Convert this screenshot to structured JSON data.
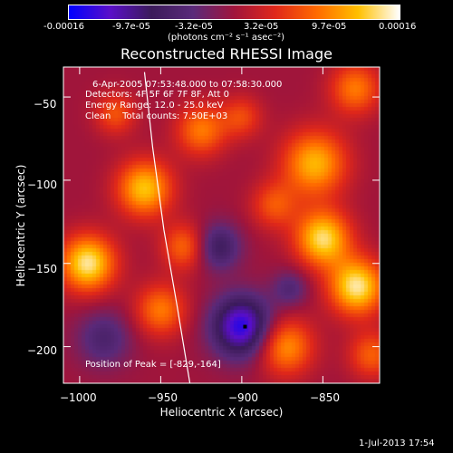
{
  "colorbar": {
    "ticks": [
      "-0.00016",
      "-9.7e-05",
      "-3.2e-05",
      "3.2e-05",
      "9.7e-05",
      "0.00016"
    ],
    "unit_label": "(photons cm⁻² s⁻¹ asec⁻²)",
    "gradient": [
      "#0000ff",
      "#5a0fc8",
      "#3b1b5a",
      "#5a2a7a",
      "#a0153c",
      "#e0281a",
      "#ff6a00",
      "#ffc000",
      "#ffffff"
    ]
  },
  "chart_data": {
    "type": "heatmap",
    "title": "Reconstructed RHESSI Image",
    "xlabel": "Heliocentric X (arcsec)",
    "ylabel": "Heliocentric Y (arcsec)",
    "xlim": [
      -1010,
      -815
    ],
    "ylim": [
      -222,
      -32
    ],
    "xticks": [
      -1000,
      -950,
      -900,
      -850
    ],
    "yticks": [
      -50,
      -100,
      -150,
      -200
    ],
    "xtick_labels": [
      "−1000",
      "−950",
      "−900",
      "−850"
    ],
    "ytick_labels": [
      "−50",
      "−100",
      "−150",
      "−200"
    ],
    "info_lines": [
      "6-Apr-2005 07:53:48.000 to 07:58:30.000",
      "Detectors: 4F 5F 6F 7F 8F, Att 0",
      "Energy Range: 12.0 - 25.0 keV",
      "Clean    Total counts: 7.50E+03"
    ],
    "peak_label": "Position of Peak = [-829,-164]",
    "peak": [
      -829,
      -164
    ],
    "minimum_marker": [
      -898,
      -188
    ],
    "limb_curve": [
      [
        -960,
        -35
      ],
      [
        -955,
        -80
      ],
      [
        -948,
        -130
      ],
      [
        -940,
        -175
      ],
      [
        -932,
        -222
      ]
    ],
    "sources": [
      {
        "x": -995,
        "y": -150,
        "sigma": 12,
        "amp": 1.0
      },
      {
        "x": -960,
        "y": -105,
        "sigma": 12,
        "amp": 0.85
      },
      {
        "x": -925,
        "y": -70,
        "sigma": 11,
        "amp": 0.6
      },
      {
        "x": -950,
        "y": -178,
        "sigma": 11,
        "amp": 0.6
      },
      {
        "x": -935,
        "y": -140,
        "sigma": 10,
        "amp": 0.55
      },
      {
        "x": -880,
        "y": -115,
        "sigma": 10,
        "amp": 0.45
      },
      {
        "x": -855,
        "y": -90,
        "sigma": 14,
        "amp": 0.8
      },
      {
        "x": -850,
        "y": -135,
        "sigma": 12,
        "amp": 0.95
      },
      {
        "x": -829,
        "y": -164,
        "sigma": 12,
        "amp": 1.0
      },
      {
        "x": -873,
        "y": -200,
        "sigma": 12,
        "amp": 0.7
      },
      {
        "x": -830,
        "y": -45,
        "sigma": 11,
        "amp": 0.6
      },
      {
        "x": -900,
        "y": -62,
        "sigma": 9,
        "amp": 0.4
      },
      {
        "x": -978,
        "y": -60,
        "sigma": 9,
        "amp": 0.45
      },
      {
        "x": -820,
        "y": -205,
        "sigma": 10,
        "amp": 0.5
      },
      {
        "x": -900,
        "y": -188,
        "sigma": 13,
        "amp": -1.0
      },
      {
        "x": -915,
        "y": -140,
        "sigma": 10,
        "amp": -0.55
      },
      {
        "x": -985,
        "y": -195,
        "sigma": 12,
        "amp": -0.4
      },
      {
        "x": -870,
        "y": -165,
        "sigma": 8,
        "amp": -0.35
      }
    ]
  },
  "timestamp": "1-Jul-2013 17:54"
}
